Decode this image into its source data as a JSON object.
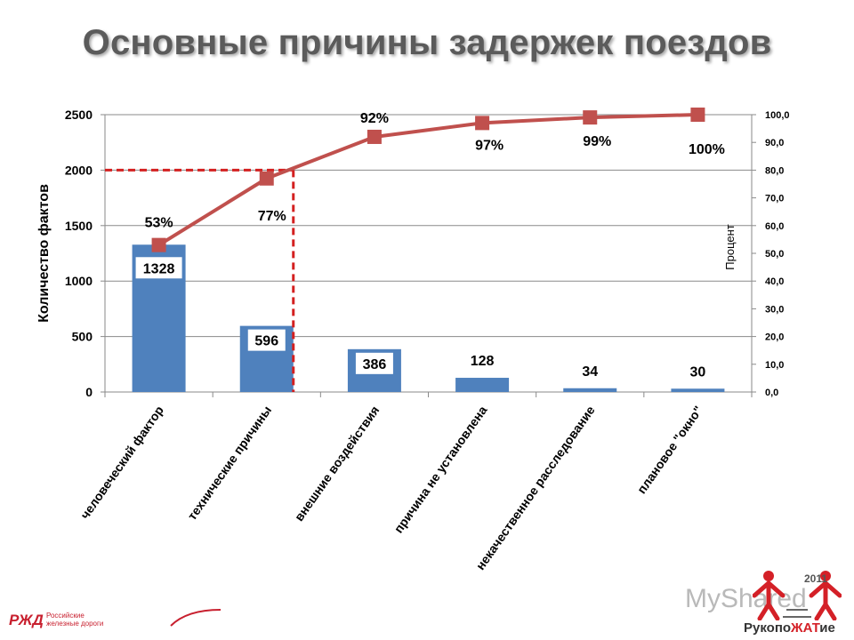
{
  "title": "Основные причины задержек поездов",
  "chart_data": {
    "type": "bar",
    "categories": [
      "человеческий фактор",
      "технические причины",
      "внешние воздействия",
      "причина не установлена",
      "некачественное расследование",
      "плановое \"окно\""
    ],
    "values": [
      1328,
      596,
      386,
      128,
      34,
      30
    ],
    "value_labels": [
      "1328",
      "596",
      "386",
      "128",
      "34",
      "30"
    ],
    "cumulative_percent": [
      53,
      77,
      92,
      97,
      99,
      100
    ],
    "percent_labels": [
      "53%",
      "77%",
      "92%",
      "97%",
      "99%",
      "100%"
    ],
    "ylabel": "Количество фактов",
    "ylim": [
      0,
      2500
    ],
    "yticks": [
      "0",
      "500",
      "1000",
      "1500",
      "2000",
      "2500"
    ],
    "y2label": "Процент",
    "y2lim": [
      0,
      100
    ],
    "y2ticks": [
      "0,0",
      "10,0",
      "20,0",
      "30,0",
      "40,0",
      "50,0",
      "60,0",
      "70,0",
      "80,0",
      "90,0",
      "100,0"
    ],
    "threshold_percent": 80,
    "grid": true,
    "colors": {
      "bar": "#4f81bd",
      "line": "#c0504d",
      "threshold": "#d42020"
    }
  },
  "footer": {
    "rzd_logo": "РЖД",
    "rzd_text": "Российские железные дороги",
    "watermark": "MyShared",
    "event_year": "2011",
    "event_name_a": "Рукопо",
    "event_name_b": "ЖАТ",
    "event_name_c": "ие"
  }
}
